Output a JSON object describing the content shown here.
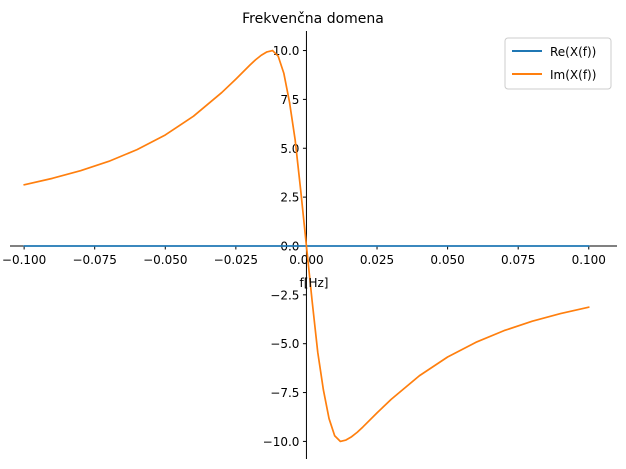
{
  "chart_data": {
    "type": "line",
    "title": "Frekvenčna domena",
    "xlabel": "f[Hz]",
    "ylabel": "",
    "xlim": [
      -0.105,
      0.11
    ],
    "ylim": [
      -10.9,
      11.0
    ],
    "xticks": [
      -0.1,
      -0.075,
      -0.05,
      -0.025,
      0.0,
      0.025,
      0.05,
      0.075,
      0.1
    ],
    "xtick_labels": [
      "−0.100",
      "−0.075",
      "−0.050",
      "−0.025",
      "0.000",
      "0.025",
      "0.050",
      "0.075",
      "0.100"
    ],
    "yticks": [
      -10.0,
      -7.5,
      -5.0,
      -2.5,
      0.0,
      2.5,
      5.0,
      7.5,
      10.0
    ],
    "ytick_labels": [
      "−10.0",
      "−7.5",
      "−5.0",
      "−2.5",
      "0.0",
      "2.5",
      "5.0",
      "7.5",
      "10.0"
    ],
    "spines": "centered at origin",
    "grid": false,
    "legend_position": "top-right",
    "series": [
      {
        "name": "Re(X(f))",
        "color": "#1f77b4",
        "x": [
          -0.1,
          0.1
        ],
        "y": [
          0,
          0
        ]
      },
      {
        "name": "Im(X(f))",
        "color": "#ff7f0e",
        "x": [
          -0.1,
          -0.09,
          -0.08,
          -0.07,
          -0.06,
          -0.05,
          -0.04,
          -0.03,
          -0.025,
          -0.02,
          -0.018,
          -0.016,
          -0.014,
          -0.012,
          -0.01,
          -0.008,
          -0.006,
          -0.004,
          -0.002,
          0.0,
          0.002,
          0.004,
          0.006,
          0.008,
          0.01,
          0.012,
          0.014,
          0.016,
          0.018,
          0.02,
          0.025,
          0.03,
          0.04,
          0.05,
          0.06,
          0.07,
          0.08,
          0.09,
          0.1
        ],
        "y": [
          3.13,
          3.46,
          3.85,
          4.33,
          4.93,
          5.68,
          6.64,
          7.85,
          8.54,
          9.26,
          9.53,
          9.76,
          9.93,
          10.0,
          9.71,
          8.83,
          7.36,
          5.43,
          2.8,
          0.0,
          -2.8,
          -5.43,
          -7.36,
          -8.83,
          -9.71,
          -10.0,
          -9.93,
          -9.76,
          -9.53,
          -9.26,
          -8.54,
          -7.85,
          -6.64,
          -5.68,
          -4.93,
          -4.33,
          -3.85,
          -3.46,
          -3.13
        ]
      }
    ]
  }
}
